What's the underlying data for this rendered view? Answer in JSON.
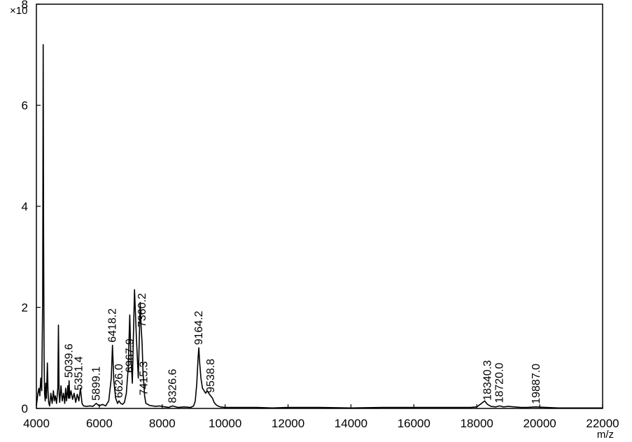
{
  "chart_data": {
    "type": "line",
    "title": "",
    "xlabel": "m/z",
    "ylabel": "",
    "y_multiplier_label": "×10",
    "xlim": [
      4000,
      22000
    ],
    "ylim": [
      0,
      8
    ],
    "x_ticks": [
      "4000",
      "6000",
      "8000",
      "10000",
      "12000",
      "14000",
      "16000",
      "18000",
      "20000",
      "22000"
    ],
    "y_ticks": [
      "0",
      "2",
      "4",
      "6",
      "8"
    ],
    "grid": false,
    "series": [
      {
        "name": "",
        "x": [
          4000,
          4050,
          4080,
          4110,
          4140,
          4170,
          4200,
          4215,
          4230,
          4245,
          4260,
          4280,
          4300,
          4320,
          4350,
          4370,
          4390,
          4420,
          4460,
          4500,
          4540,
          4570,
          4600,
          4640,
          4680,
          4700,
          4720,
          4740,
          4780,
          4820,
          4860,
          4900,
          4930,
          4960,
          5000,
          5020,
          5040,
          5060,
          5100,
          5150,
          5200,
          5250,
          5300,
          5350,
          5400,
          5450,
          5500,
          5600,
          5700,
          5800,
          5900,
          6000,
          6100,
          6200,
          6300,
          6380,
          6418,
          6460,
          6520,
          6580,
          6626,
          6680,
          6740,
          6800,
          6860,
          6920,
          6968,
          7000,
          7050,
          7080,
          7120,
          7180,
          7240,
          7300,
          7330,
          7360,
          7390,
          7415,
          7440,
          7480,
          7540,
          7600,
          7700,
          7800,
          7900,
          8000,
          8100,
          8200,
          8327,
          8500,
          8700,
          8900,
          9000,
          9050,
          9100,
          9140,
          9164,
          9190,
          9230,
          9280,
          9330,
          9380,
          9430,
          9480,
          9539,
          9600,
          9650,
          9700,
          9760,
          9850,
          10000,
          10500,
          11000,
          11500,
          12000,
          13000,
          14000,
          15000,
          16000,
          17000,
          17500,
          17800,
          18000,
          18150,
          18250,
          18340,
          18450,
          18600,
          18720,
          18850,
          19000,
          19200,
          19400,
          19600,
          19887,
          20200,
          20600,
          21000,
          21500,
          22000
        ],
        "y": [
          0.05,
          0.3,
          0.4,
          0.25,
          0.6,
          0.35,
          2.2,
          7.2,
          3.4,
          1.0,
          0.3,
          0.15,
          0.5,
          0.2,
          0.9,
          0.35,
          0.12,
          0.05,
          0.3,
          0.1,
          0.35,
          0.15,
          0.25,
          0.1,
          0.4,
          1.65,
          0.3,
          0.12,
          0.45,
          0.15,
          0.3,
          0.1,
          0.4,
          0.15,
          0.45,
          0.2,
          0.55,
          0.2,
          0.35,
          0.18,
          0.3,
          0.12,
          0.28,
          0.15,
          0.4,
          0.1,
          0.05,
          0.04,
          0.05,
          0.04,
          0.1,
          0.05,
          0.08,
          0.05,
          0.15,
          0.6,
          1.25,
          0.55,
          0.2,
          0.1,
          0.15,
          0.1,
          0.08,
          0.12,
          0.3,
          0.8,
          1.85,
          1.1,
          0.5,
          1.3,
          2.35,
          1.4,
          0.6,
          2.1,
          1.6,
          1.3,
          0.7,
          0.5,
          0.25,
          0.1,
          0.08,
          0.06,
          0.05,
          0.04,
          0.05,
          0.04,
          0.03,
          0.02,
          0.05,
          0.02,
          0.03,
          0.02,
          0.05,
          0.15,
          0.5,
          1.0,
          1.2,
          0.9,
          0.6,
          0.4,
          0.35,
          0.3,
          0.35,
          0.3,
          0.25,
          0.2,
          0.12,
          0.08,
          0.05,
          0.03,
          0.02,
          0.02,
          0.02,
          0.01,
          0.02,
          0.02,
          0.01,
          0.02,
          0.02,
          0.02,
          0.02,
          0.02,
          0.03,
          0.1,
          0.15,
          0.08,
          0.04,
          0.03,
          0.05,
          0.03,
          0.04,
          0.03,
          0.02,
          0.02,
          0.03,
          0.02,
          0.01,
          0.01,
          0.01,
          0.01
        ]
      }
    ],
    "peak_labels": [
      {
        "text": "5039.6",
        "x": 5039.6,
        "y": 0.55
      },
      {
        "text": "5351.4",
        "x": 5351.4,
        "y": 0.3
      },
      {
        "text": "5899.1",
        "x": 5899.1,
        "y": 0.1
      },
      {
        "text": "6418.2",
        "x": 6418.2,
        "y": 1.25
      },
      {
        "text": "6626.0",
        "x": 6626.0,
        "y": 0.15
      },
      {
        "text": "6967.9",
        "x": 6967.9,
        "y": 0.65
      },
      {
        "text": "7360.2",
        "x": 7360.2,
        "y": 1.55
      },
      {
        "text": "7415.3",
        "x": 7415.3,
        "y": 0.2
      },
      {
        "text": "8326.6",
        "x": 8326.6,
        "y": 0.05
      },
      {
        "text": "9164.2",
        "x": 9164.2,
        "y": 1.2
      },
      {
        "text": "9538.8",
        "x": 9538.8,
        "y": 0.25
      },
      {
        "text": "18340.3",
        "x": 18340.3,
        "y": 0.1
      },
      {
        "text": "18720.0",
        "x": 18720.0,
        "y": 0.05
      },
      {
        "text": "19887.0",
        "x": 19887.0,
        "y": 0.03
      }
    ],
    "line_color": "#000000"
  }
}
